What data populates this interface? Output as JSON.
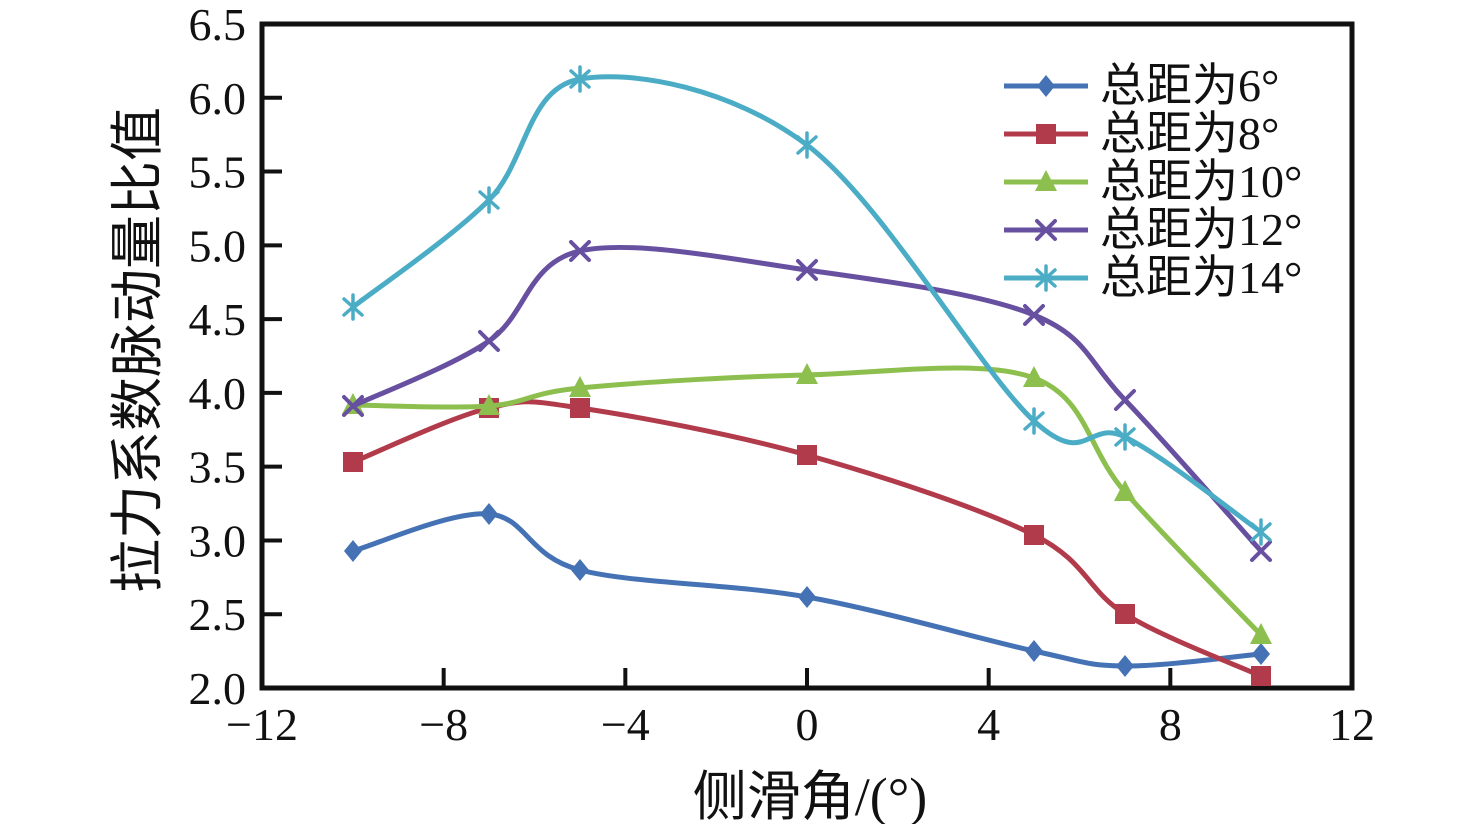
{
  "chart_data": {
    "type": "line",
    "title": "",
    "xlabel": "侧滑角/(°)",
    "ylabel": "拉力系数脉动量比值",
    "xlim": [
      -12,
      12
    ],
    "ylim": [
      2.0,
      6.5
    ],
    "x_ticks": [
      -12,
      -8,
      -4,
      0,
      4,
      8,
      12
    ],
    "y_ticks": [
      2.0,
      2.5,
      3.0,
      3.5,
      4.0,
      4.5,
      5.0,
      5.5,
      6.0,
      6.5
    ],
    "grid": false,
    "legend_position": "top-right",
    "axis_color": "#111111",
    "x": [
      -10,
      -7,
      -5,
      0,
      5,
      7,
      10
    ],
    "series": [
      {
        "name": "总距为6°",
        "color": "#4472B4",
        "marker": "diamond",
        "values": [
          2.93,
          3.18,
          2.8,
          2.62,
          2.25,
          2.15,
          2.23
        ]
      },
      {
        "name": "总距为8°",
        "color": "#B23B4B",
        "marker": "square",
        "values": [
          3.53,
          3.9,
          3.9,
          3.58,
          3.04,
          2.5,
          2.08
        ]
      },
      {
        "name": "总距为10°",
        "color": "#8DBF4F",
        "marker": "triangle",
        "values": [
          3.92,
          3.91,
          4.03,
          4.12,
          4.1,
          3.33,
          2.36
        ]
      },
      {
        "name": "总距为12°",
        "color": "#6850A0",
        "marker": "x",
        "values": [
          3.91,
          4.35,
          4.96,
          4.83,
          4.53,
          3.95,
          2.93
        ]
      },
      {
        "name": "总距为14°",
        "color": "#4BACC6",
        "marker": "asterisk",
        "values": [
          4.58,
          5.31,
          6.13,
          5.68,
          3.81,
          3.7,
          3.06
        ]
      }
    ]
  }
}
